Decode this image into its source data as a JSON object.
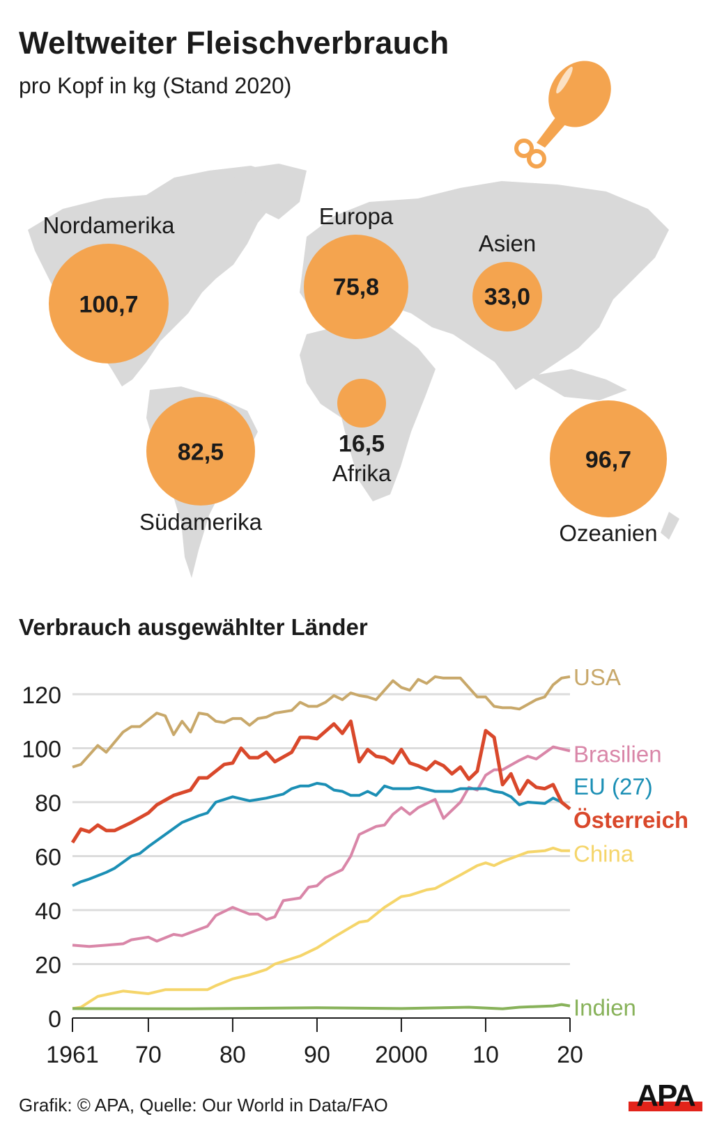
{
  "header": {
    "title": "Weltweiter Fleischverbrauch",
    "subtitle": "pro Kopf in kg (Stand 2020)"
  },
  "map": {
    "bubble_color": "#f4a44f",
    "land_color": "#d9d9d9",
    "icon": "chicken-drumstick-icon",
    "regions": [
      {
        "name": "Nordamerika",
        "value": "100,7"
      },
      {
        "name": "Europa",
        "value": "75,8"
      },
      {
        "name": "Asien",
        "value": "33,0"
      },
      {
        "name": "Afrika",
        "value": "16,5"
      },
      {
        "name": "Südamerika",
        "value": "82,5"
      },
      {
        "name": "Ozeanien",
        "value": "96,7"
      }
    ]
  },
  "section_title": "Verbrauch ausgewählter Länder",
  "chart_data": {
    "type": "line",
    "title": "Verbrauch ausgewählter Länder",
    "xlabel": "",
    "ylabel": "",
    "xlim": [
      1961,
      2020
    ],
    "ylim": [
      0,
      120
    ],
    "grid": true,
    "legend": "line-end labels (right)",
    "x_ticks": [
      1961,
      1970,
      1980,
      1990,
      2000,
      2010,
      2020
    ],
    "x_tick_labels": [
      "1961",
      "70",
      "80",
      "90",
      "2000",
      "10",
      "20"
    ],
    "y_ticks": [
      0,
      20,
      40,
      60,
      80,
      100,
      120
    ],
    "y_tick_labels": [
      "0",
      "20",
      "40",
      "60",
      "80",
      "100",
      "120"
    ],
    "series": [
      {
        "name": "USA",
        "color": "#c8a86a",
        "bold": false,
        "points": [
          [
            1961,
            93
          ],
          [
            1962,
            94
          ],
          [
            1964,
            101
          ],
          [
            1965,
            98.5
          ],
          [
            1967,
            106
          ],
          [
            1968,
            108
          ],
          [
            1969,
            108
          ],
          [
            1971,
            113
          ],
          [
            1972,
            112
          ],
          [
            1973,
            105
          ],
          [
            1974,
            110
          ],
          [
            1975,
            106
          ],
          [
            1976,
            113
          ],
          [
            1977,
            112.5
          ],
          [
            1978,
            110
          ],
          [
            1979,
            109.5
          ],
          [
            1980,
            111
          ],
          [
            1981,
            111
          ],
          [
            1982,
            108.5
          ],
          [
            1983,
            111
          ],
          [
            1984,
            111.5
          ],
          [
            1985,
            113
          ],
          [
            1987,
            114
          ],
          [
            1988,
            117
          ],
          [
            1989,
            115.5
          ],
          [
            1990,
            115.5
          ],
          [
            1991,
            117
          ],
          [
            1992,
            119.5
          ],
          [
            1993,
            118
          ],
          [
            1994,
            120.5
          ],
          [
            1995,
            119.5
          ],
          [
            1996,
            119
          ],
          [
            1997,
            118
          ],
          [
            1999,
            125
          ],
          [
            2000,
            122.5
          ],
          [
            2001,
            121.5
          ],
          [
            2002,
            125.5
          ],
          [
            2003,
            124
          ],
          [
            2004,
            126.5
          ],
          [
            2005,
            126
          ],
          [
            2007,
            126
          ],
          [
            2009,
            119
          ],
          [
            2010,
            119
          ],
          [
            2011,
            115.5
          ],
          [
            2012,
            115
          ],
          [
            2013,
            115
          ],
          [
            2014,
            114.5
          ],
          [
            2016,
            118
          ],
          [
            2017,
            119
          ],
          [
            2018,
            123.5
          ],
          [
            2019,
            126
          ],
          [
            2020,
            126.5
          ]
        ]
      },
      {
        "name": "Brasilien",
        "color": "#d986a8",
        "bold": false,
        "points": [
          [
            1961,
            27
          ],
          [
            1963,
            26.5
          ],
          [
            1965,
            27
          ],
          [
            1967,
            27.5
          ],
          [
            1968,
            29
          ],
          [
            1970,
            30
          ],
          [
            1971,
            28.5
          ],
          [
            1973,
            31
          ],
          [
            1974,
            30.5
          ],
          [
            1977,
            34
          ],
          [
            1978,
            38
          ],
          [
            1980,
            41
          ],
          [
            1982,
            38.5
          ],
          [
            1983,
            38.5
          ],
          [
            1984,
            36.5
          ],
          [
            1985,
            37.5
          ],
          [
            1986,
            43.5
          ],
          [
            1988,
            44.5
          ],
          [
            1989,
            48.5
          ],
          [
            1990,
            49
          ],
          [
            1991,
            52
          ],
          [
            1993,
            55
          ],
          [
            1994,
            60
          ],
          [
            1995,
            68
          ],
          [
            1996,
            69.5
          ],
          [
            1997,
            71
          ],
          [
            1998,
            71.5
          ],
          [
            1999,
            75.5
          ],
          [
            2000,
            78
          ],
          [
            2001,
            75.5
          ],
          [
            2002,
            78
          ],
          [
            2004,
            81
          ],
          [
            2005,
            74
          ],
          [
            2007,
            80
          ],
          [
            2008,
            85.5
          ],
          [
            2009,
            84.5
          ],
          [
            2010,
            90
          ],
          [
            2011,
            92
          ],
          [
            2012,
            92
          ],
          [
            2014,
            95.5
          ],
          [
            2015,
            97
          ],
          [
            2016,
            96
          ],
          [
            2018,
            100.5
          ],
          [
            2020,
            99
          ]
        ]
      },
      {
        "name": "EU (27)",
        "color": "#1b8fb5",
        "bold": false,
        "points": [
          [
            1961,
            49
          ],
          [
            1962,
            50.5
          ],
          [
            1963,
            51.5
          ],
          [
            1965,
            54
          ],
          [
            1966,
            55.5
          ],
          [
            1968,
            60
          ],
          [
            1969,
            61
          ],
          [
            1970,
            63.5
          ],
          [
            1972,
            68
          ],
          [
            1974,
            72.5
          ],
          [
            1976,
            75
          ],
          [
            1977,
            76
          ],
          [
            1978,
            80
          ],
          [
            1980,
            82
          ],
          [
            1982,
            80.5
          ],
          [
            1984,
            81.5
          ],
          [
            1986,
            83
          ],
          [
            1987,
            85
          ],
          [
            1988,
            86
          ],
          [
            1989,
            86
          ],
          [
            1990,
            87
          ],
          [
            1991,
            86.5
          ],
          [
            1992,
            84.5
          ],
          [
            1993,
            84
          ],
          [
            1994,
            82.5
          ],
          [
            1995,
            82.5
          ],
          [
            1996,
            84
          ],
          [
            1997,
            82.5
          ],
          [
            1998,
            86
          ],
          [
            1999,
            85
          ],
          [
            2001,
            85
          ],
          [
            2002,
            85.5
          ],
          [
            2004,
            84
          ],
          [
            2006,
            84
          ],
          [
            2007,
            85
          ],
          [
            2009,
            85
          ],
          [
            2010,
            85
          ],
          [
            2011,
            84
          ],
          [
            2012,
            83.5
          ],
          [
            2013,
            82
          ],
          [
            2014,
            79
          ],
          [
            2015,
            80
          ],
          [
            2017,
            79.5
          ],
          [
            2018,
            81.5
          ],
          [
            2019,
            80
          ],
          [
            2020,
            77.5
          ]
        ]
      },
      {
        "name": "Österreich",
        "color": "#d9482b",
        "bold": true,
        "points": [
          [
            1961,
            65
          ],
          [
            1962,
            70
          ],
          [
            1963,
            69
          ],
          [
            1964,
            71.5
          ],
          [
            1965,
            69.5
          ],
          [
            1966,
            69.5
          ],
          [
            1968,
            72.5
          ],
          [
            1970,
            76
          ],
          [
            1971,
            79
          ],
          [
            1973,
            82.5
          ],
          [
            1975,
            84.5
          ],
          [
            1976,
            89
          ],
          [
            1977,
            89
          ],
          [
            1979,
            94
          ],
          [
            1980,
            94.5
          ],
          [
            1981,
            100
          ],
          [
            1982,
            96.5
          ],
          [
            1983,
            96.5
          ],
          [
            1984,
            98.5
          ],
          [
            1985,
            95
          ],
          [
            1987,
            98.5
          ],
          [
            1988,
            104
          ],
          [
            1989,
            104
          ],
          [
            1990,
            103.5
          ],
          [
            1992,
            109
          ],
          [
            1993,
            105.5
          ],
          [
            1994,
            110
          ],
          [
            1995,
            95
          ],
          [
            1996,
            99.5
          ],
          [
            1997,
            97
          ],
          [
            1998,
            96.5
          ],
          [
            1999,
            94.5
          ],
          [
            2000,
            99.5
          ],
          [
            2001,
            94.5
          ],
          [
            2002,
            93.5
          ],
          [
            2003,
            92
          ],
          [
            2004,
            95
          ],
          [
            2005,
            93.5
          ],
          [
            2006,
            90.5
          ],
          [
            2007,
            93
          ],
          [
            2008,
            88.5
          ],
          [
            2009,
            91.5
          ],
          [
            2010,
            106.5
          ],
          [
            2011,
            104
          ],
          [
            2012,
            86.5
          ],
          [
            2013,
            90.5
          ],
          [
            2014,
            83
          ],
          [
            2015,
            88
          ],
          [
            2016,
            85.5
          ],
          [
            2017,
            85
          ],
          [
            2018,
            86.5
          ],
          [
            2019,
            80
          ],
          [
            2020,
            77.5
          ]
        ]
      },
      {
        "name": "China",
        "color": "#f5d56a",
        "bold": false,
        "points": [
          [
            1961,
            3.5
          ],
          [
            1962,
            4
          ],
          [
            1964,
            8
          ],
          [
            1967,
            10
          ],
          [
            1970,
            9
          ],
          [
            1972,
            10.5
          ],
          [
            1977,
            10.5
          ],
          [
            1978,
            12
          ],
          [
            1980,
            14.5
          ],
          [
            1982,
            16
          ],
          [
            1984,
            18
          ],
          [
            1985,
            20
          ],
          [
            1988,
            23
          ],
          [
            1990,
            26
          ],
          [
            1992,
            30
          ],
          [
            1995,
            35.5
          ],
          [
            1996,
            36
          ],
          [
            1998,
            41
          ],
          [
            2000,
            45
          ],
          [
            2001,
            45.5
          ],
          [
            2003,
            47.5
          ],
          [
            2004,
            48
          ],
          [
            2007,
            53
          ],
          [
            2009,
            56.5
          ],
          [
            2010,
            57.5
          ],
          [
            2011,
            56.5
          ],
          [
            2012,
            58
          ],
          [
            2015,
            61.5
          ],
          [
            2017,
            62
          ],
          [
            2018,
            63
          ],
          [
            2019,
            62
          ],
          [
            2020,
            62
          ]
        ]
      },
      {
        "name": "Indien",
        "color": "#88b25a",
        "bold": false,
        "points": [
          [
            1961,
            3.5
          ],
          [
            1975,
            3.4
          ],
          [
            1990,
            3.8
          ],
          [
            2000,
            3.5
          ],
          [
            2008,
            4
          ],
          [
            2012,
            3.4
          ],
          [
            2014,
            4
          ],
          [
            2018,
            4.5
          ],
          [
            2019,
            5
          ],
          [
            2020,
            4.5
          ]
        ]
      }
    ]
  },
  "footer": {
    "credit": "Grafik: © APA, Quelle: Our World in Data/FAO",
    "logo_text": "APA"
  }
}
